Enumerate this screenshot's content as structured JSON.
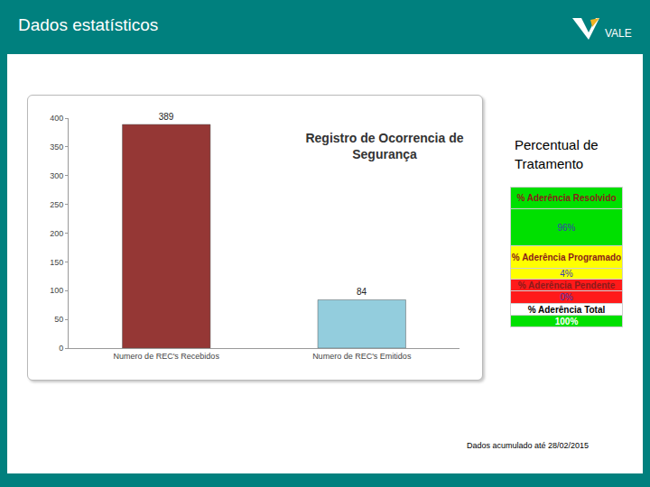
{
  "header": {
    "title": "Dados estatísticos",
    "logo": "VALE"
  },
  "chart_data": {
    "type": "bar",
    "title": "Registro de Ocorrencia de Segurança",
    "categories": [
      "Numero de REC's Recebidos",
      "Numero de REC's Emitidos"
    ],
    "values": [
      389,
      84
    ],
    "colors": [
      "#953735",
      "#93cddd"
    ],
    "ylim": [
      0,
      400
    ],
    "yticks": [
      0,
      50,
      100,
      150,
      200,
      250,
      300,
      350,
      400
    ],
    "grid": false,
    "data_labels": true
  },
  "side_panel": {
    "title": "Percentual de Tratamento",
    "table": {
      "rows": [
        {
          "label": "% Aderência Resolvido",
          "value": "96%",
          "color": "#00e000"
        },
        {
          "label": "% Aderência Programado",
          "value": "4%",
          "color": "#ffff00"
        },
        {
          "label": "% Aderência Pendente",
          "value": "0%",
          "color": "#ff1a1a"
        },
        {
          "label": "% Aderência Total",
          "value": "100%",
          "color": "#00e000"
        }
      ]
    }
  },
  "note": "Dados acumulado até 28/02/2015"
}
